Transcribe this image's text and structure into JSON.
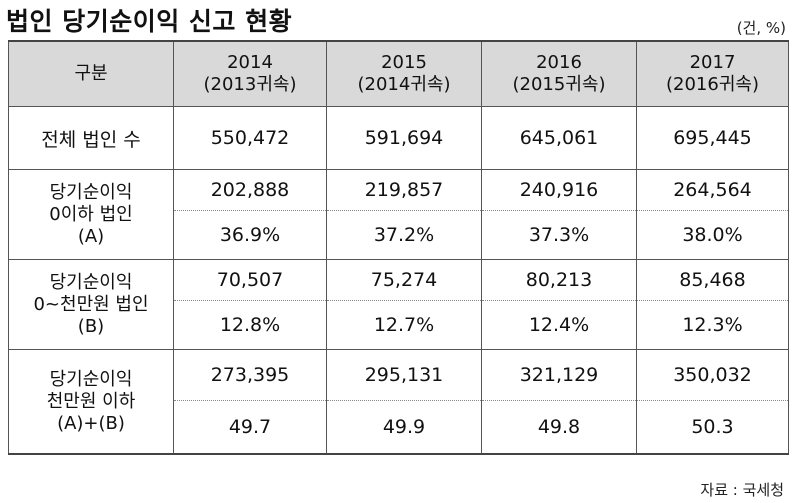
{
  "title": "법인 당기순이익 신고 현황",
  "unit": "(건, %)",
  "source": "자료 : 국세청",
  "table": {
    "header": {
      "category": "구분",
      "years": [
        {
          "year": "2014",
          "sub": "(2013귀속)"
        },
        {
          "year": "2015",
          "sub": "(2014귀속)"
        },
        {
          "year": "2016",
          "sub": "(2015귀속)"
        },
        {
          "year": "2017",
          "sub": "(2016귀속)"
        }
      ]
    },
    "total": {
      "label": "전체 법인 수",
      "values": [
        "550,472",
        "591,694",
        "645,061",
        "695,445"
      ]
    },
    "groups": [
      {
        "label": [
          "당기순이익",
          "0이하 법인",
          "(A)"
        ],
        "counts": [
          "202,888",
          "219,857",
          "240,916",
          "264,564"
        ],
        "ratios": [
          "36.9%",
          "37.2%",
          "37.3%",
          "38.0%"
        ]
      },
      {
        "label": [
          "당기순이익",
          "0~천만원 법인",
          "(B)"
        ],
        "counts": [
          "70,507",
          "75,274",
          "80,213",
          "85,468"
        ],
        "ratios": [
          "12.8%",
          "12.7%",
          "12.4%",
          "12.3%"
        ]
      },
      {
        "label": [
          "당기순이익",
          "천만원 이하",
          "(A)+(B)"
        ],
        "counts": [
          "273,395",
          "295,131",
          "321,129",
          "350,032"
        ],
        "ratios": [
          "49.7",
          "49.9",
          "49.8",
          "50.3"
        ]
      }
    ]
  }
}
